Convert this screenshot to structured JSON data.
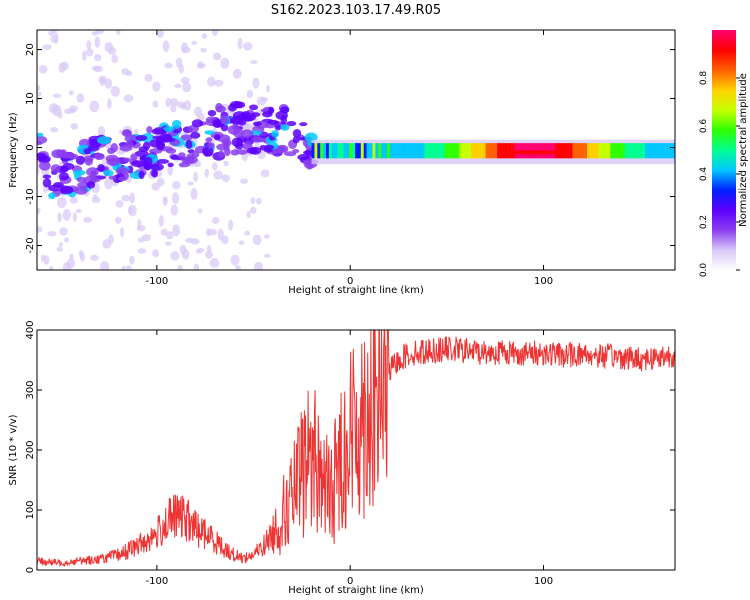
{
  "title": "S162.2023.103.17.49.R05",
  "colors": {
    "signal_line": "#ee3333",
    "axis": "#000000"
  },
  "chart_data": [
    {
      "type": "heatmap",
      "xlabel": "Height of straight line (km)",
      "ylabel": "Frequency (Hz)",
      "xlim": [
        -162,
        168
      ],
      "ylim": [
        -25,
        24
      ],
      "xticks": [
        -100,
        0,
        100
      ],
      "yticks": [
        -20,
        -10,
        0,
        10,
        20
      ],
      "colorbar": {
        "label": "Normalized spectral amplitude",
        "range": [
          0,
          1
        ],
        "ticks": [
          "0.0",
          "0.2",
          "0.4",
          "0.6",
          "0.8"
        ],
        "tick_values": [
          0.0,
          0.2,
          0.4,
          0.6,
          0.8
        ],
        "colormap": [
          "#ffffff",
          "#d8c8f8",
          "#8a3df0",
          "#5c00ff",
          "#0020ff",
          "#00c8ff",
          "#00ff90",
          "#30ff00",
          "#c8ff00",
          "#ffd000",
          "#ff6000",
          "#ff0000",
          "#ff0070"
        ]
      },
      "ridge": [
        {
          "x": -160,
          "y": -6
        },
        {
          "x": -140,
          "y": -4
        },
        {
          "x": -120,
          "y": -2
        },
        {
          "x": -100,
          "y": -1
        },
        {
          "x": -80,
          "y": 2
        },
        {
          "x": -60,
          "y": 4
        },
        {
          "x": -40,
          "y": 4
        },
        {
          "x": -28,
          "y": 2
        },
        {
          "x": -20,
          "y": -1
        },
        {
          "x": -10,
          "y": 0
        },
        {
          "x": 0,
          "y": -1
        },
        {
          "x": 20,
          "y": 0
        },
        {
          "x": 60,
          "y": 0
        },
        {
          "x": 90,
          "y": -1
        },
        {
          "x": 130,
          "y": -1
        },
        {
          "x": 168,
          "y": -1
        }
      ],
      "peak": {
        "x": 95,
        "y": -1,
        "amplitude": 1.0
      }
    },
    {
      "type": "line",
      "xlabel": "Height of straight line (km)",
      "ylabel": "SNR (10 * v/v)",
      "xlim": [
        -162,
        168
      ],
      "ylim": [
        0,
        400
      ],
      "xticks": [
        -100,
        0,
        100
      ],
      "yticks": [
        0,
        100,
        200,
        300,
        400
      ],
      "series": [
        {
          "x": [
            -162,
            -150,
            -140,
            -130,
            -120,
            -110,
            -100,
            -95,
            -90,
            -85,
            -80,
            -75,
            -70,
            -65,
            -60,
            -55,
            -50,
            -45,
            -40,
            -35,
            -30,
            -25,
            -20,
            -15,
            -10,
            -5,
            0,
            5,
            10,
            15,
            20,
            25,
            30,
            40,
            50,
            60,
            70,
            80,
            90,
            100,
            110,
            120,
            130,
            140,
            150,
            160,
            168
          ],
          "values": [
            15,
            12,
            15,
            18,
            25,
            40,
            60,
            80,
            90,
            85,
            70,
            60,
            50,
            35,
            25,
            20,
            25,
            40,
            60,
            90,
            120,
            160,
            200,
            160,
            120,
            190,
            220,
            250,
            280,
            300,
            330,
            350,
            360,
            365,
            368,
            366,
            362,
            364,
            360,
            362,
            358,
            360,
            357,
            355,
            352,
            355,
            360
          ]
        }
      ]
    }
  ]
}
